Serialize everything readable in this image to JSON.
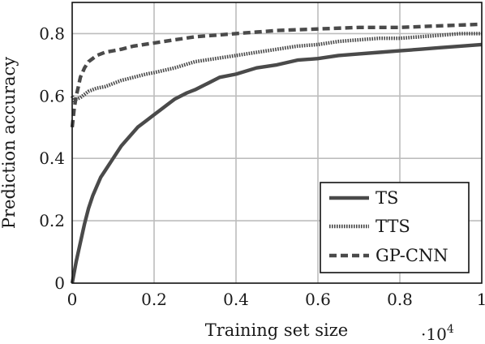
{
  "chart_data": {
    "type": "line",
    "title": "",
    "xlabel": "Training set size",
    "ylabel": "Prediction accuracy",
    "x_multiplier_label": "·10",
    "x_multiplier_exponent": "4",
    "xlim": [
      0,
      1
    ],
    "ylim": [
      0,
      0.9
    ],
    "xticks": [
      0,
      0.2,
      0.4,
      0.6,
      0.8,
      1
    ],
    "xtick_labels": [
      "0",
      "0.2",
      "0.4",
      "0.6",
      "0.8",
      "1"
    ],
    "yticks": [
      0,
      0.2,
      0.4,
      0.6,
      0.8
    ],
    "ytick_labels": [
      "0",
      "0.2",
      "0.4",
      "0.6",
      "0.8"
    ],
    "grid": true,
    "legend_position": "bottom-right",
    "series": [
      {
        "name": "TS",
        "style": "solid",
        "color": "#4a4a4a",
        "x": [
          0,
          0.01,
          0.02,
          0.03,
          0.04,
          0.05,
          0.06,
          0.07,
          0.08,
          0.1,
          0.12,
          0.14,
          0.16,
          0.18,
          0.2,
          0.22,
          0.25,
          0.28,
          0.3,
          0.33,
          0.36,
          0.4,
          0.45,
          0.5,
          0.55,
          0.6,
          0.65,
          0.7,
          0.75,
          0.8,
          0.85,
          0.9,
          0.95,
          1.0
        ],
        "y": [
          0,
          0.07,
          0.13,
          0.19,
          0.24,
          0.28,
          0.31,
          0.34,
          0.36,
          0.4,
          0.44,
          0.47,
          0.5,
          0.52,
          0.54,
          0.56,
          0.59,
          0.61,
          0.62,
          0.64,
          0.66,
          0.67,
          0.69,
          0.7,
          0.715,
          0.72,
          0.73,
          0.735,
          0.74,
          0.745,
          0.75,
          0.755,
          0.76,
          0.765
        ]
      },
      {
        "name": "TTS",
        "style": "dotted",
        "color": "#4a4a4a",
        "x": [
          0,
          0.005,
          0.01,
          0.02,
          0.03,
          0.04,
          0.05,
          0.06,
          0.08,
          0.1,
          0.12,
          0.15,
          0.18,
          0.2,
          0.25,
          0.3,
          0.35,
          0.4,
          0.45,
          0.5,
          0.55,
          0.6,
          0.65,
          0.7,
          0.75,
          0.8,
          0.85,
          0.9,
          0.95,
          1.0
        ],
        "y": [
          0.6,
          0.585,
          0.59,
          0.595,
          0.605,
          0.615,
          0.62,
          0.625,
          0.63,
          0.64,
          0.65,
          0.66,
          0.67,
          0.675,
          0.69,
          0.71,
          0.72,
          0.73,
          0.74,
          0.75,
          0.76,
          0.765,
          0.775,
          0.78,
          0.785,
          0.785,
          0.79,
          0.795,
          0.8,
          0.8
        ]
      },
      {
        "name": "GP-CNN",
        "style": "dashed",
        "color": "#4a4a4a",
        "x": [
          0,
          0.005,
          0.01,
          0.015,
          0.02,
          0.03,
          0.04,
          0.05,
          0.06,
          0.08,
          0.1,
          0.12,
          0.15,
          0.2,
          0.25,
          0.3,
          0.35,
          0.4,
          0.45,
          0.5,
          0.6,
          0.7,
          0.8,
          0.9,
          1.0
        ],
        "y": [
          0.5,
          0.56,
          0.6,
          0.63,
          0.66,
          0.69,
          0.71,
          0.72,
          0.73,
          0.74,
          0.745,
          0.75,
          0.76,
          0.77,
          0.78,
          0.79,
          0.795,
          0.8,
          0.805,
          0.81,
          0.815,
          0.82,
          0.82,
          0.825,
          0.83
        ]
      }
    ]
  }
}
